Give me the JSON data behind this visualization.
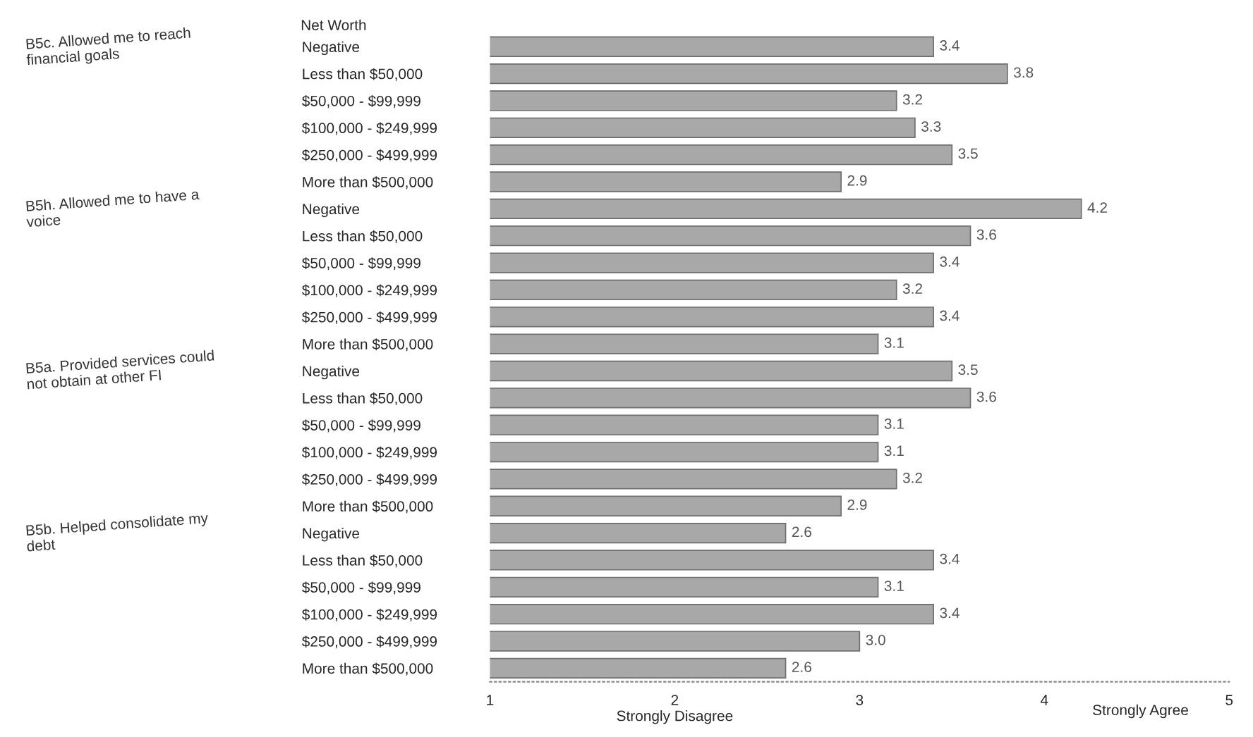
{
  "chart_data": {
    "type": "bar",
    "orientation": "horizontal",
    "ylabel": "Net Worth",
    "categories": [
      "Negative",
      "Less than $50,000",
      "$50,000 - $99,999",
      "$100,000 - $249,999",
      "$250,000 - $499,999",
      "More than $500,000",
      "Negative",
      "Less than $50,000",
      "$50,000 - $99,999",
      "$100,000 - $249,999",
      "$250,000 - $499,999",
      "More than $500,000",
      "Negative",
      "Less than $50,000",
      "$50,000 - $99,999",
      "$100,000 - $249,999",
      "$250,000 - $499,999",
      "More than $500,000",
      "Negative",
      "Less than $50,000",
      "$50,000 - $99,999",
      "$100,000 - $249,999",
      "$250,000 - $499,999",
      "More than $500,000"
    ],
    "values": [
      3.4,
      3.8,
      3.2,
      3.3,
      3.5,
      2.9,
      4.2,
      3.6,
      3.4,
      3.2,
      3.4,
      3.1,
      3.5,
      3.6,
      3.1,
      3.1,
      3.2,
      2.9,
      2.6,
      3.4,
      3.1,
      3.4,
      3.0,
      2.6
    ],
    "value_labels": [
      "3.4",
      "3.8",
      "3.2",
      "3.3",
      "3.5",
      "2.9",
      "4.2",
      "3.6",
      "3.4",
      "3.2",
      "3.4",
      "3.1",
      "3.5",
      "3.6",
      "3.1",
      "3.1",
      "3.2",
      "2.9",
      "2.6",
      "3.4",
      "3.1",
      "3.4",
      "3.0",
      "2.6"
    ],
    "color": "#a8a8a8",
    "xlim": [
      1,
      5
    ],
    "xticks": [
      1,
      {
        "value": 2,
        "label": "2\nStrongly Disagree"
      },
      3,
      4,
      5
    ],
    "annotations": [
      "B5c. Allowed me to reach\nfinancial goals",
      "B5h. Allowed me to have a\nvoice",
      "B5a. Provided services could\nnot obtain at other FI",
      "B5b. Helped consolidate my\ndebt",
      "Strongly Agree"
    ]
  }
}
